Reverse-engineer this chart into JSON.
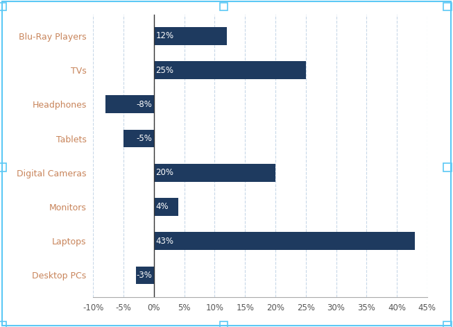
{
  "categories": [
    "Desktop PCs",
    "Laptops",
    "Monitors",
    "Digital Cameras",
    "Tablets",
    "Headphones",
    "TVs",
    "Blu-Ray Players"
  ],
  "values": [
    -3,
    43,
    4,
    20,
    -5,
    -8,
    25,
    12
  ],
  "bar_color": "#1e3a5f",
  "bar_text_color": "#ffffff",
  "label_color": "#c8845a",
  "background_color": "#ffffff",
  "grid_color": "#c8d8e8",
  "xlim": [
    -10,
    45
  ],
  "xticks": [
    -10,
    -5,
    0,
    5,
    10,
    15,
    20,
    25,
    30,
    35,
    40,
    45
  ],
  "xtick_labels": [
    "-10%",
    "-5%",
    "0%",
    "5%",
    "10%",
    "15%",
    "20%",
    "25%",
    "30%",
    "35%",
    "40%",
    "45%"
  ],
  "border_color": "#5bc8f5",
  "bar_height": 0.52
}
